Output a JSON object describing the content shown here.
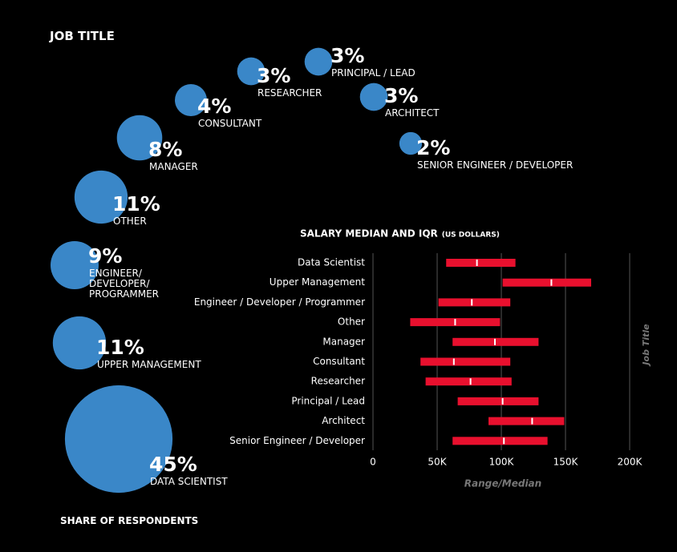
{
  "chart_data": [
    {
      "type": "bubble",
      "title": "JOB TITLE",
      "footer": "SHARE OF RESPONDENTS",
      "color": "#3a87c8",
      "categories": [
        "DATA SCIENTIST",
        "UPPER MANAGEMENT",
        "ENGINEER/\nDEVELOPER/\nPROGRAMMER",
        "OTHER",
        "MANAGER",
        "CONSULTANT",
        "RESEARCHER",
        "PRINCIPAL / LEAD",
        "ARCHITECT",
        "SENIOR ENGINEER / DEVELOPER"
      ],
      "values": [
        45,
        11,
        9,
        11,
        8,
        4,
        3,
        3,
        3,
        2
      ],
      "value_labels": [
        "45%",
        "11%",
        "9%",
        "11%",
        "8%",
        "4%",
        "3%",
        "3%",
        "3%",
        "2%"
      ]
    },
    {
      "type": "range",
      "title": "SALARY MEDIAN AND IQR",
      "subtitle": "(US DOLLARS)",
      "color": "#e8102e",
      "xlabel": "Range/Median",
      "ylabel": "Job Title",
      "categories": [
        "Data Scientist",
        "Upper Management",
        "Engineer / Developer / Programmer",
        "Other",
        "Manager",
        "Consultant",
        "Researcher",
        "Principal / Lead",
        "Architect",
        "Senior Engineer / Developer"
      ],
      "q1": [
        57000,
        101000,
        51000,
        29000,
        62000,
        37000,
        41000,
        66000,
        90000,
        62000
      ],
      "median": [
        81000,
        139000,
        77000,
        64000,
        95000,
        63000,
        76000,
        101000,
        124000,
        102000
      ],
      "q3": [
        111000,
        170000,
        107000,
        99000,
        129000,
        107000,
        108000,
        129000,
        149000,
        136000
      ],
      "xlim": [
        0,
        200000
      ],
      "xticks": [
        0,
        {
          "value": 50000,
          "label": "50K"
        },
        {
          "value": 100000,
          "label": "100K"
        },
        {
          "value": 150000,
          "label": "150K"
        },
        {
          "value": 200000,
          "label": "200K"
        }
      ],
      "grid": true
    }
  ]
}
